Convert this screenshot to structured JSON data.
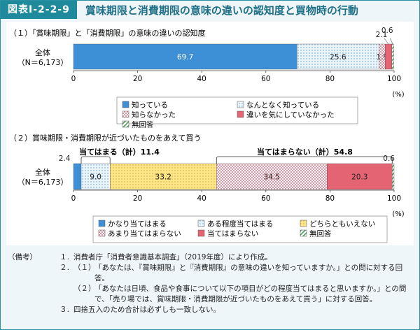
{
  "header": {
    "fig_label": "図表Ⅰ-2-2-9",
    "title": "賞味期限と消費期限の意味の違いの認知度と買物時の行動"
  },
  "colors": {
    "blue": "#3d8fd6",
    "light_blue_dots": "#d9ecf8",
    "pink_checker": "#f2c6cf",
    "red": "#e56473",
    "green_hatch": "#5aa364",
    "yellow_dots": "#fbe07b"
  },
  "chart_data": [
    {
      "type": "bar",
      "orientation": "horizontal-stacked",
      "title": "（１）「賞味期限」と「消費期限」の意味の違いの認知度",
      "categories": [
        "全体",
        "（N＝6,173）"
      ],
      "xlim": [
        0,
        100
      ],
      "xticks": [
        "0",
        "20",
        "40",
        "60",
        "80",
        "100"
      ],
      "xunit": "(%)",
      "series": [
        {
          "name": "知っている",
          "value": 69.7,
          "label": "69.7"
        },
        {
          "name": "なんとなく知っている",
          "value": 25.6,
          "label": "25.6"
        },
        {
          "name": "知らなかった",
          "value": 1.9,
          "label": "1.9"
        },
        {
          "name": "違いを気にしていなかった",
          "value": 2.1,
          "label": "2.1"
        },
        {
          "name": "無回答",
          "value": 0.6,
          "label": "0.6"
        }
      ]
    },
    {
      "type": "bar",
      "orientation": "horizontal-stacked",
      "title": "（２）賞味期限・消費期限が近づいたものをあえて買う",
      "categories": [
        "全体",
        "（N＝6,173）"
      ],
      "xlim": [
        0,
        100
      ],
      "xticks": [
        "0",
        "20",
        "40",
        "60",
        "80",
        "100"
      ],
      "xunit": "(%)",
      "annotations": [
        {
          "text": "当てはまる（計）11.4"
        },
        {
          "text": "当てはまらない（計）54.8"
        }
      ],
      "series": [
        {
          "name": "かなり当てはまる",
          "value": 2.4,
          "label": "2.4"
        },
        {
          "name": "ある程度当てはまる",
          "value": 9.0,
          "label": "9.0"
        },
        {
          "name": "どちらともいえない",
          "value": 33.2,
          "label": "33.2"
        },
        {
          "name": "あまり当てはまらない",
          "value": 34.5,
          "label": "34.5"
        },
        {
          "name": "当てはまらない",
          "value": 20.3,
          "label": "20.3"
        },
        {
          "name": "無回答",
          "value": 0.6,
          "label": "0.6"
        }
      ]
    }
  ],
  "notes": {
    "label": "（備考）",
    "items": [
      {
        "num": "１.",
        "sub": "",
        "text": "消費者庁「消費者意識基本調査」（2019年度）により作成。"
      },
      {
        "num": "２.",
        "sub": "（１）",
        "text": "「あなたは、『賞味期限』と『消費期限』の意味の違いを知っていますか。」との問に対する回答。"
      },
      {
        "num": "",
        "sub": "（２）",
        "text": "「あなたは日頃、食品や食事について以下の項目がどの程度当てはまると思いますか。」との問で、「売り場では、賞味期限・消費期限が近づいたものをあえて買う」に対する回答。"
      },
      {
        "num": "３.",
        "sub": "",
        "text": "四捨五入のため合計は必ずしも一致しない。"
      }
    ]
  }
}
